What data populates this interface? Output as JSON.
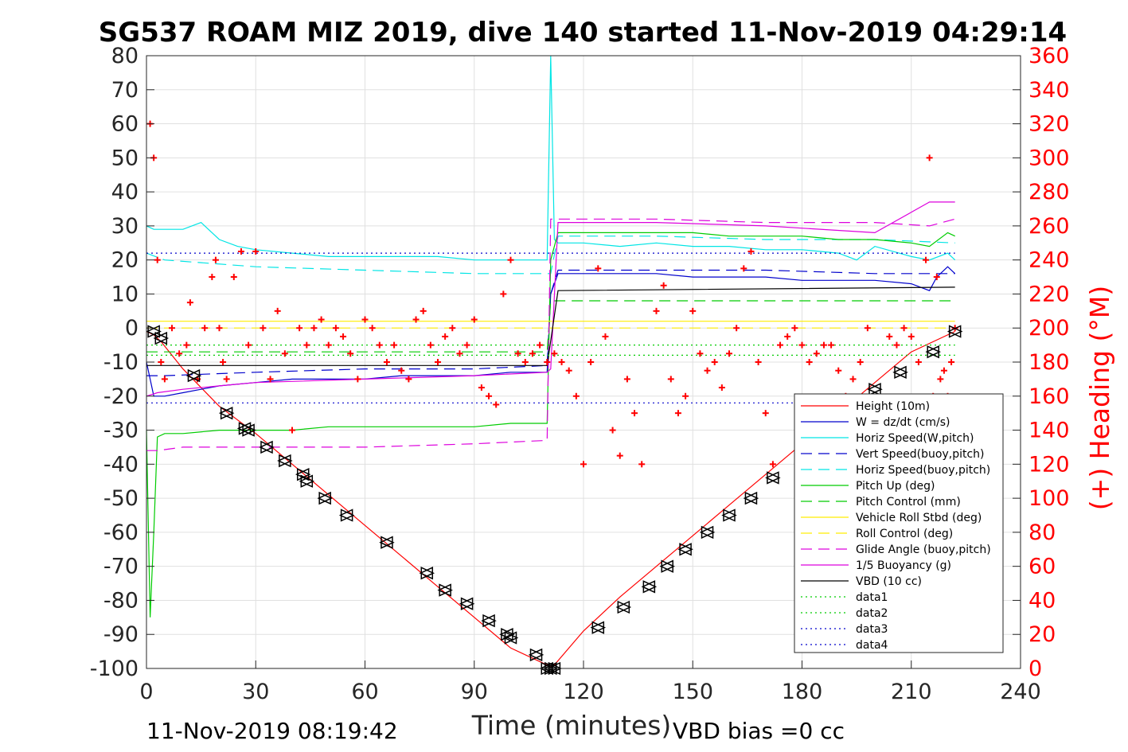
{
  "chart_data": {
    "type": "line",
    "title": "SG537 ROAM MIZ 2019, dive 140 started 11-Nov-2019 04:29:14",
    "xlabel": "Time (minutes)",
    "ylabel_right": "(+) Heading (°M)",
    "xlim": [
      0,
      240
    ],
    "ylim_left": [
      -100,
      80
    ],
    "ylim_right": [
      0,
      360
    ],
    "x_ticks": [
      "0",
      "30",
      "60",
      "90",
      "120",
      "150",
      "180",
      "210",
      "240"
    ],
    "y_ticks_left": [
      "80",
      "70",
      "60",
      "50",
      "40",
      "30",
      "20",
      "10",
      "0",
      "-10",
      "-20",
      "-30",
      "-40",
      "-50",
      "-60",
      "-70",
      "-80",
      "-90",
      "-100"
    ],
    "y_ticks_right": [
      "360",
      "340",
      "320",
      "300",
      "280",
      "260",
      "240",
      "220",
      "200",
      "180",
      "160",
      "140",
      "120",
      "100",
      "80",
      "60",
      "40",
      "20",
      "0"
    ],
    "grid": true,
    "legend_position": "bottom-right",
    "footer_left": "11-Nov-2019 08:19:42",
    "footer_right": "VBD bias =0 cc",
    "legend": [
      {
        "label": "Height (10m)",
        "color": "#ff0000",
        "dash": "solid"
      },
      {
        "label": "W = dz/dt (cm/s)",
        "color": "#0000cc",
        "dash": "solid"
      },
      {
        "label": "Horiz Speed(W,pitch)",
        "color": "#00e5e5",
        "dash": "solid"
      },
      {
        "label": "Vert Speed(buoy,pitch)",
        "color": "#0000cc",
        "dash": "dashed"
      },
      {
        "label": "Horiz Speed(buoy,pitch)",
        "color": "#00e5e5",
        "dash": "dashed"
      },
      {
        "label": "Pitch Up (deg)",
        "color": "#00cc00",
        "dash": "solid"
      },
      {
        "label": "Pitch Control (mm)",
        "color": "#00cc00",
        "dash": "dashed"
      },
      {
        "label": "Vehicle Roll Stbd (deg)",
        "color": "#ffee00",
        "dash": "solid"
      },
      {
        "label": "Roll Control (deg)",
        "color": "#ffee00",
        "dash": "dashed"
      },
      {
        "label": "Glide Angle (buoy,pitch)",
        "color": "#dd00dd",
        "dash": "dashed"
      },
      {
        "label": "1/5 Buoyancy (g)",
        "color": "#dd00dd",
        "dash": "solid"
      },
      {
        "label": "VBD (10 cc)",
        "color": "#000000",
        "dash": "solid"
      },
      {
        "label": "data1",
        "color": "#00cc00",
        "dash": "dotted"
      },
      {
        "label": "data2",
        "color": "#00cc00",
        "dash": "dotted"
      },
      {
        "label": "data3",
        "color": "#0000cc",
        "dash": "dotted"
      },
      {
        "label": "data4",
        "color": "#0000cc",
        "dash": "dotted"
      }
    ],
    "series": [
      {
        "name": "Height (10m)",
        "x": [
          0,
          2,
          4,
          10,
          20,
          30,
          40,
          50,
          60,
          70,
          80,
          90,
          100,
          110,
          111,
          112,
          120,
          130,
          140,
          150,
          160,
          170,
          180,
          190,
          200,
          210,
          222
        ],
        "y": [
          -1,
          -2,
          -4,
          -12,
          -23,
          -31,
          -40,
          -49,
          -58,
          -67,
          -76,
          -85,
          -94,
          -99,
          -99.5,
          -99,
          -89,
          -79,
          -70,
          -61,
          -52,
          -43,
          -34,
          -25,
          -16,
          -7,
          -1
        ]
      },
      {
        "name": "Markers (depth)",
        "x": [
          2,
          4,
          13,
          22,
          27,
          28,
          33,
          38,
          43,
          44,
          49,
          55,
          66,
          77,
          82,
          88,
          94,
          99,
          100,
          107,
          110,
          111,
          112,
          124,
          131,
          138,
          143,
          148,
          154,
          160,
          166,
          172,
          200,
          207,
          216,
          222
        ],
        "y": [
          -1,
          -3,
          -14,
          -25,
          -29.5,
          -30,
          -35,
          -39,
          -43,
          -45,
          -50,
          -55,
          -63,
          -72,
          -77,
          -81,
          -86,
          -90,
          -91,
          -96,
          -100,
          -100,
          -100,
          -88,
          -82,
          -76,
          -70,
          -65,
          -60,
          -55,
          -50,
          -44,
          -18,
          -13,
          -7,
          -1
        ]
      },
      {
        "name": "W = dz/dt (cm/s)",
        "x": [
          0,
          2,
          5,
          10,
          15,
          20,
          30,
          40,
          50,
          60,
          70,
          80,
          90,
          100,
          110,
          111,
          113,
          120,
          130,
          140,
          150,
          160,
          170,
          180,
          190,
          200,
          210,
          215,
          217,
          220,
          222
        ],
        "y": [
          -10,
          -20,
          -20,
          -19,
          -18,
          -17,
          -16,
          -15,
          -15,
          -15,
          -14,
          -14,
          -14,
          -13,
          -13,
          10,
          16,
          16,
          16,
          16,
          15,
          15,
          15,
          14,
          14,
          14,
          13,
          11,
          15,
          18,
          16
        ]
      },
      {
        "name": "Horiz Speed(W,pitch)",
        "x": [
          0,
          2,
          5,
          10,
          15,
          20,
          25,
          30,
          40,
          50,
          60,
          70,
          80,
          90,
          100,
          110,
          111,
          112,
          113,
          120,
          130,
          140,
          150,
          160,
          170,
          180,
          190,
          195,
          200,
          210,
          215,
          220,
          222
        ],
        "y": [
          30,
          29,
          29,
          29,
          31,
          26,
          24,
          23,
          22,
          21,
          21,
          21,
          21,
          20,
          20,
          20,
          80,
          26,
          25,
          25,
          24,
          25,
          24,
          24,
          23,
          23,
          22,
          20,
          24,
          21,
          20,
          22,
          20
        ]
      },
      {
        "name": "Vert Speed(buoy,pitch)",
        "x": [
          0,
          5,
          30,
          60,
          90,
          110,
          111,
          113,
          140,
          170,
          200,
          222
        ],
        "y": [
          -14,
          -14,
          -13,
          -12,
          -12,
          -11,
          10,
          17,
          17,
          17,
          16,
          16
        ]
      },
      {
        "name": "Horiz Speed(buoy,pitch)",
        "x": [
          0,
          5,
          30,
          60,
          90,
          110,
          111,
          113,
          140,
          170,
          200,
          222
        ],
        "y": [
          22,
          20,
          18,
          17,
          16,
          16,
          16,
          27,
          27,
          26,
          26,
          25
        ]
      },
      {
        "name": "Pitch Up (deg)",
        "x": [
          0,
          1,
          2,
          3,
          5,
          10,
          20,
          30,
          40,
          50,
          60,
          70,
          80,
          90,
          100,
          110,
          111,
          113,
          120,
          130,
          140,
          150,
          160,
          170,
          180,
          190,
          200,
          210,
          215,
          220,
          222
        ],
        "y": [
          -30,
          -85,
          -60,
          -32,
          -31,
          -31,
          -30,
          -30,
          -30,
          -29,
          -29,
          -29,
          -29,
          -29,
          -28,
          -28,
          20,
          28,
          28,
          28,
          28,
          28,
          27,
          27,
          27,
          26,
          26,
          25,
          24,
          28,
          27
        ]
      },
      {
        "name": "Pitch Control (mm)",
        "x": [
          0,
          110,
          111,
          222
        ],
        "y": [
          -7,
          -7,
          8,
          8
        ]
      },
      {
        "name": "Vehicle Roll Stbd (deg)",
        "x": [
          0,
          110,
          111,
          222
        ],
        "y": [
          2,
          2,
          2,
          2
        ]
      },
      {
        "name": "Roll Control (deg)",
        "x": [
          0,
          222
        ],
        "y": [
          0,
          0
        ]
      },
      {
        "name": "Glide Angle (buoy,pitch)",
        "x": [
          0,
          3,
          10,
          30,
          60,
          90,
          110,
          111,
          113,
          140,
          170,
          200,
          215,
          222
        ],
        "y": [
          -36,
          -36,
          -35,
          -35,
          -35,
          -34,
          -33,
          32,
          32,
          32,
          31,
          31,
          30,
          32
        ]
      },
      {
        "name": "1/5 Buoyancy (g)",
        "x": [
          0,
          3,
          10,
          20,
          30,
          60,
          90,
          110,
          111,
          113,
          140,
          170,
          200,
          215,
          222
        ],
        "y": [
          -20,
          -19,
          -18,
          -17,
          -16,
          -15,
          -14,
          -13,
          -12,
          31,
          31,
          30,
          28,
          37,
          37
        ]
      },
      {
        "name": "VBD (10 cc)",
        "x": [
          0,
          3,
          110,
          113,
          222
        ],
        "y": [
          -11,
          -11,
          -11,
          11,
          12
        ]
      },
      {
        "name": "data1",
        "x": [
          0,
          222
        ],
        "y": [
          -8,
          -8
        ]
      },
      {
        "name": "data2",
        "x": [
          0,
          222
        ],
        "y": [
          -5,
          -5
        ]
      },
      {
        "name": "data3",
        "x": [
          0,
          222
        ],
        "y": [
          -22,
          -22
        ]
      },
      {
        "name": "data4",
        "x": [
          0,
          222
        ],
        "y": [
          22,
          22
        ]
      },
      {
        "name": "(+) Heading",
        "axis": "right",
        "x": [
          1,
          2,
          3,
          4,
          5,
          7,
          9,
          11,
          12,
          14,
          16,
          18,
          19,
          20,
          21,
          22,
          24,
          26,
          28,
          30,
          32,
          34,
          36,
          38,
          40,
          42,
          44,
          46,
          48,
          50,
          52,
          54,
          56,
          58,
          60,
          62,
          64,
          66,
          68,
          70,
          72,
          74,
          76,
          78,
          80,
          82,
          84,
          86,
          88,
          90,
          92,
          94,
          96,
          98,
          100,
          102,
          104,
          106,
          108,
          110,
          112,
          114,
          116,
          118,
          120,
          122,
          124,
          126,
          128,
          130,
          132,
          134,
          136,
          140,
          142,
          144,
          146,
          148,
          150,
          152,
          154,
          156,
          158,
          160,
          162,
          164,
          166,
          168,
          170,
          172,
          174,
          176,
          178,
          180,
          182,
          184,
          186,
          188,
          190,
          192,
          194,
          196,
          198,
          200,
          202,
          204,
          206,
          208,
          210,
          212,
          214,
          215,
          216,
          217,
          218,
          219,
          220,
          221,
          222
        ],
        "y": [
          320,
          300,
          240,
          180,
          170,
          200,
          185,
          190,
          215,
          170,
          200,
          230,
          240,
          200,
          180,
          170,
          230,
          245,
          190,
          245,
          200,
          170,
          210,
          185,
          140,
          200,
          190,
          200,
          205,
          190,
          200,
          195,
          185,
          170,
          205,
          200,
          190,
          180,
          190,
          175,
          170,
          205,
          210,
          190,
          180,
          195,
          200,
          185,
          190,
          205,
          165,
          160,
          155,
          220,
          240,
          185,
          180,
          185,
          190,
          180,
          185,
          180,
          175,
          160,
          120,
          180,
          235,
          195,
          140,
          125,
          170,
          150,
          120,
          210,
          225,
          170,
          150,
          160,
          210,
          185,
          175,
          180,
          165,
          185,
          200,
          235,
          245,
          180,
          150,
          120,
          190,
          195,
          200,
          190,
          180,
          185,
          190,
          190,
          175,
          160,
          170,
          180,
          200,
          155,
          150,
          195,
          190,
          200,
          195,
          180,
          240,
          300,
          160,
          230,
          170,
          175,
          160,
          180,
          200
        ]
      }
    ]
  }
}
